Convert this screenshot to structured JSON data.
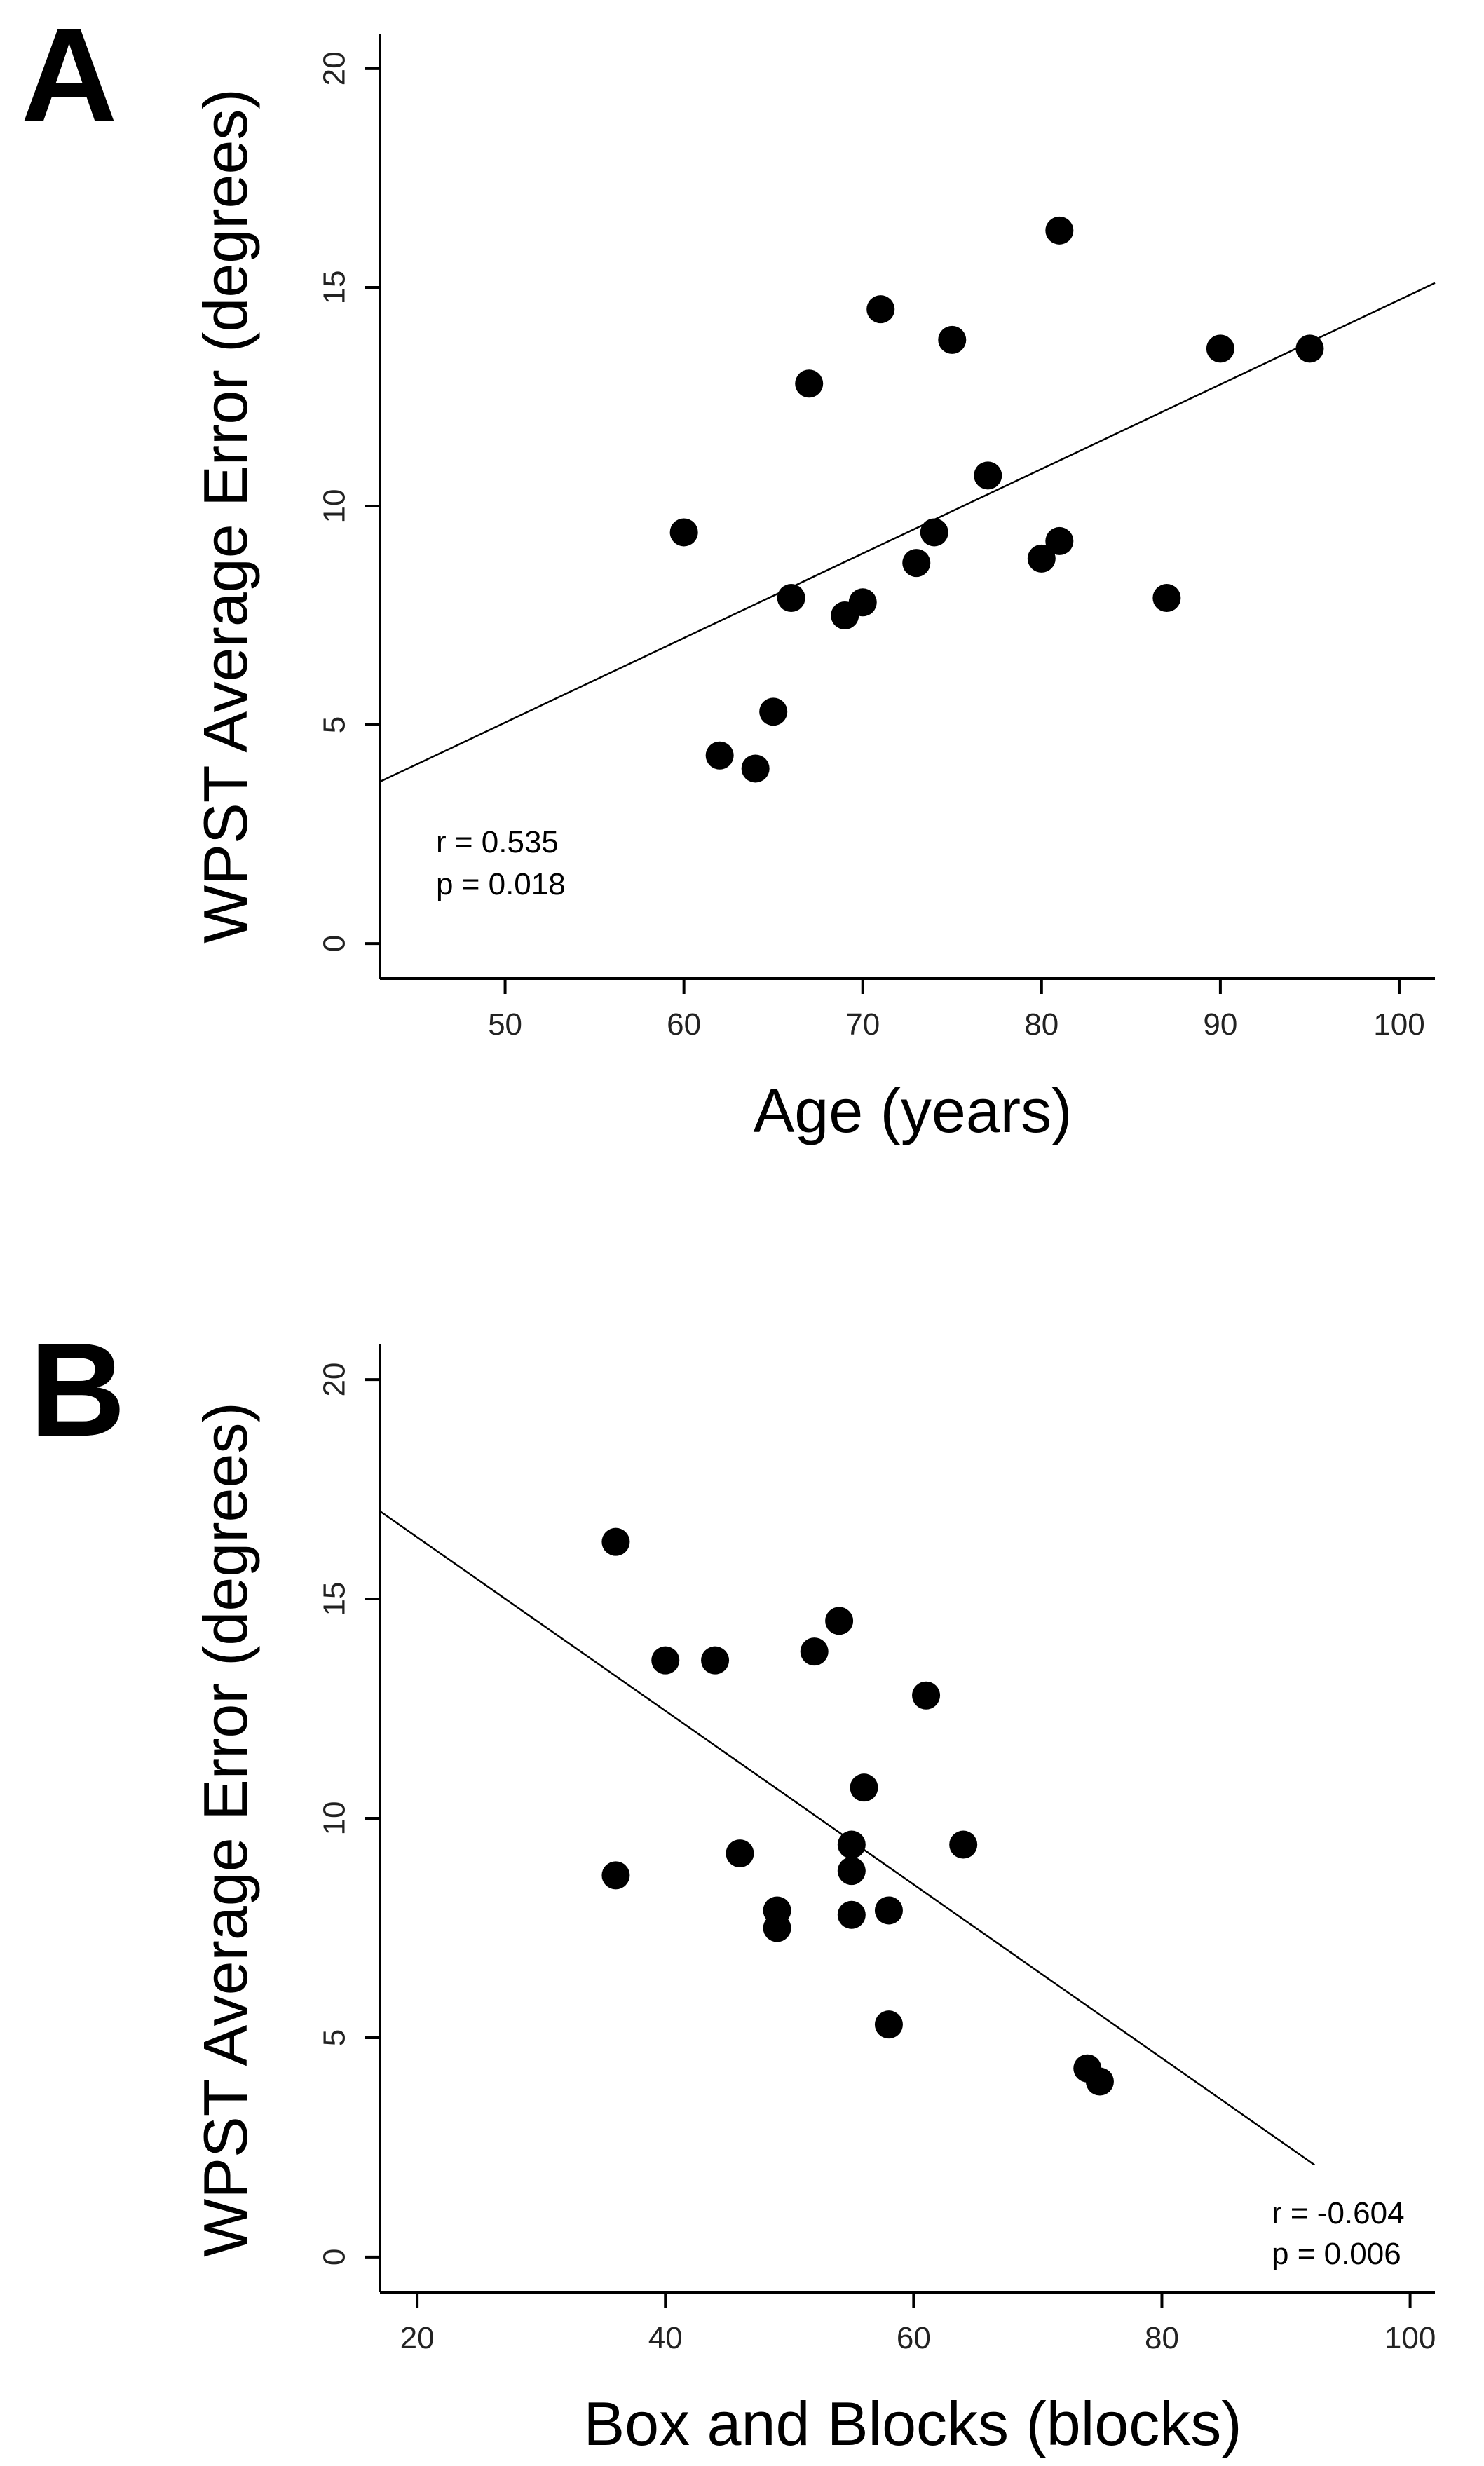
{
  "chart_data": [
    {
      "panel": "A",
      "type": "scatter",
      "title": "",
      "xlabel": "Age (years)",
      "ylabel": "WPST Average Error (degrees)",
      "xlim": [
        43,
        102
      ],
      "ylim": [
        -0.8,
        20.8
      ],
      "xticks": [
        50,
        60,
        70,
        80,
        90,
        100
      ],
      "yticks": [
        0,
        5,
        10,
        15,
        20
      ],
      "points": [
        {
          "x": 60,
          "y": 9.4
        },
        {
          "x": 62,
          "y": 4.3
        },
        {
          "x": 64,
          "y": 4.0
        },
        {
          "x": 65,
          "y": 5.3
        },
        {
          "x": 66,
          "y": 7.9
        },
        {
          "x": 67,
          "y": 12.8
        },
        {
          "x": 69,
          "y": 7.5
        },
        {
          "x": 70,
          "y": 7.8
        },
        {
          "x": 71,
          "y": 14.5
        },
        {
          "x": 73,
          "y": 8.7
        },
        {
          "x": 74,
          "y": 9.4
        },
        {
          "x": 75,
          "y": 13.8
        },
        {
          "x": 77,
          "y": 10.7
        },
        {
          "x": 80,
          "y": 8.8
        },
        {
          "x": 81,
          "y": 9.2
        },
        {
          "x": 81,
          "y": 16.3
        },
        {
          "x": 87,
          "y": 7.9
        },
        {
          "x": 90,
          "y": 13.6
        },
        {
          "x": 95,
          "y": 13.6
        }
      ],
      "fit_line": {
        "x": [
          43,
          102
        ],
        "y": [
          3.7,
          15.1
        ]
      },
      "annotations": {
        "r": "r = 0.535",
        "p": "p = 0.018"
      },
      "annotation_position": "bottom-left",
      "grid": false
    },
    {
      "panel": "B",
      "type": "scatter",
      "title": "",
      "xlabel": "Box and Blocks (blocks)",
      "ylabel": "WPST Average Error (degrees)",
      "xlim": [
        17,
        102
      ],
      "ylim": [
        -0.8,
        20.8
      ],
      "xticks": [
        20,
        40,
        60,
        80,
        100
      ],
      "yticks": [
        0,
        5,
        10,
        15,
        20
      ],
      "points": [
        {
          "x": 36,
          "y": 16.3
        },
        {
          "x": 36,
          "y": 8.7
        },
        {
          "x": 40,
          "y": 13.6
        },
        {
          "x": 44,
          "y": 13.6
        },
        {
          "x": 46,
          "y": 9.2
        },
        {
          "x": 49,
          "y": 7.9
        },
        {
          "x": 49,
          "y": 7.5
        },
        {
          "x": 52,
          "y": 13.8
        },
        {
          "x": 54,
          "y": 14.5
        },
        {
          "x": 55,
          "y": 9.4
        },
        {
          "x": 55,
          "y": 8.8
        },
        {
          "x": 55,
          "y": 7.8
        },
        {
          "x": 56,
          "y": 10.7
        },
        {
          "x": 58,
          "y": 7.9
        },
        {
          "x": 58,
          "y": 5.3
        },
        {
          "x": 61,
          "y": 12.8
        },
        {
          "x": 64,
          "y": 9.4
        },
        {
          "x": 74,
          "y": 4.3
        },
        {
          "x": 75,
          "y": 4.0
        }
      ],
      "fit_line": {
        "x": [
          17,
          92.3
        ],
        "y": [
          17.0,
          2.1
        ]
      },
      "annotations": {
        "r": "r = -0.604",
        "p": "p = 0.006"
      },
      "annotation_position": "bottom-right",
      "grid": false
    }
  ]
}
